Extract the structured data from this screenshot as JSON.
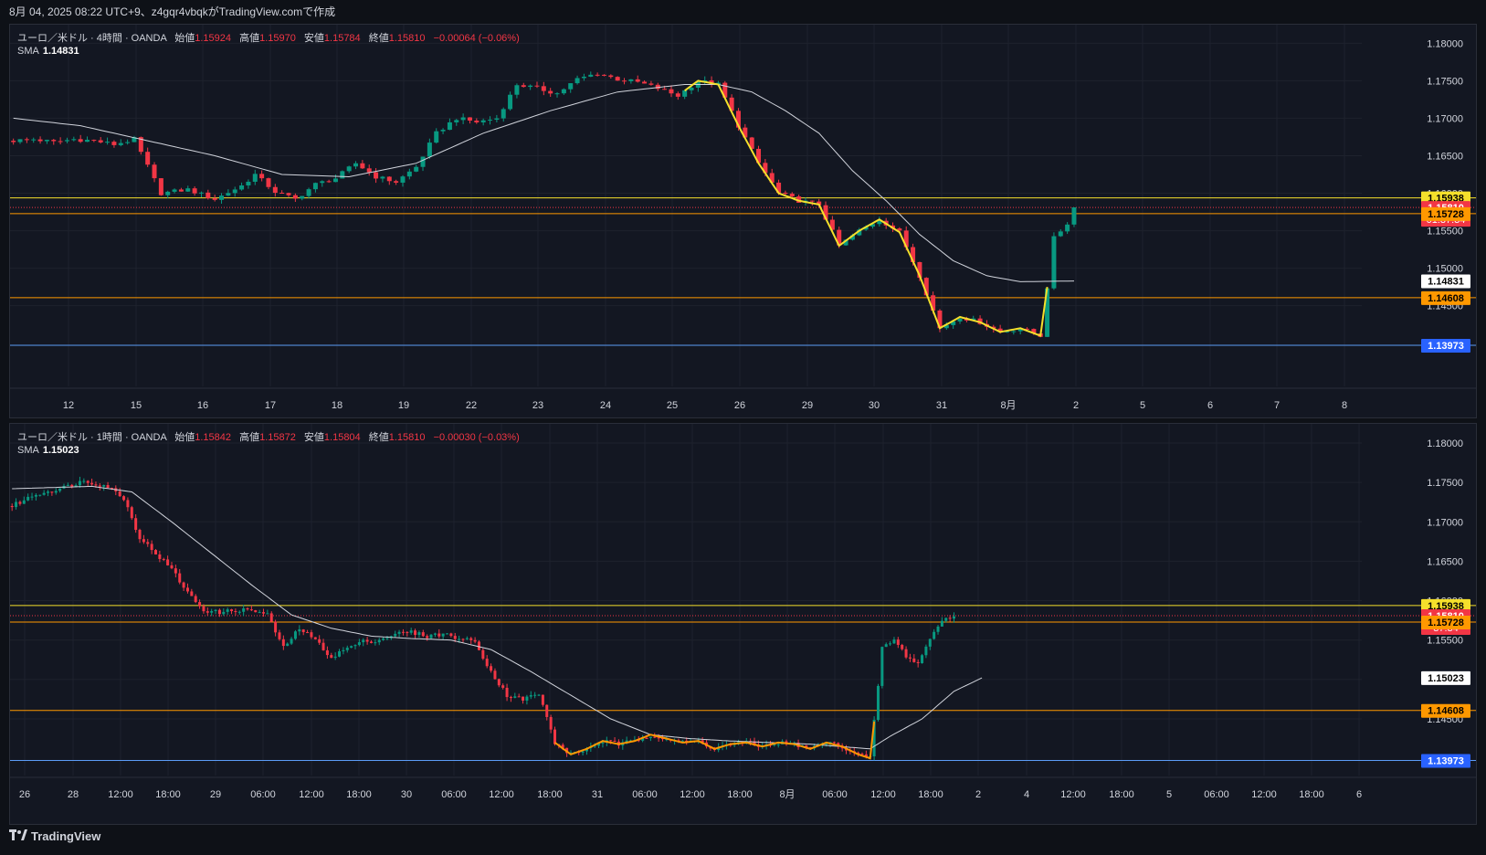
{
  "header": {
    "text": "8月 04, 2025 08:22 UTC+9、z4gqr4vbqkがTradingView.comで作成"
  },
  "footer": {
    "brand": "TradingView"
  },
  "colors": {
    "background": "#131722",
    "up": "#089981",
    "down": "#f23645",
    "grid": "#1e222d",
    "sma": "#d1d4dc",
    "level_yellow": "#f5e02b",
    "level_orange": "#ff9800",
    "level_blue": "#2962ff",
    "wave_yellow": "#f5e02b",
    "wave_orange": "#ff9800"
  },
  "panes": [
    {
      "symbol": "ユーロ／米ドル · 4時間 · OANDA",
      "open_label": "始値",
      "open": "1.15924",
      "high_label": "高値",
      "high": "1.15970",
      "low_label": "安値",
      "low": "1.15784",
      "close_label": "終値",
      "close": "1.15810",
      "change": "−0.00064 (−0.06%)",
      "sma_label": "SMA",
      "sma_value": "1.14831"
    },
    {
      "symbol": "ユーロ／米ドル · 1時間 · OANDA",
      "open_label": "始値",
      "open": "1.15842",
      "high_label": "高値",
      "high": "1.15872",
      "low_label": "安値",
      "low": "1.15804",
      "close_label": "終値",
      "close": "1.15810",
      "change": "−0.00030 (−0.03%)",
      "sma_label": "SMA",
      "sma_value": "1.15023"
    }
  ],
  "chart_data": [
    {
      "type": "candlestick",
      "title": "ユーロ／米ドル · 4時間 · OANDA",
      "ylim": [
        1.134,
        1.1815
      ],
      "y_ticks": [
        "1.18000",
        "1.17500",
        "1.17000",
        "1.16500",
        "1.16000",
        "1.15500",
        "1.15000",
        "1.14500"
      ],
      "x_labels": [
        "12",
        "15",
        "16",
        "17",
        "18",
        "19",
        "22",
        "23",
        "24",
        "25",
        "26",
        "29",
        "30",
        "31",
        "8月",
        "2",
        "5",
        "6",
        "7",
        "8"
      ],
      "price_labels": [
        {
          "text": "1.15938",
          "value": 1.15938,
          "bg": "#f5e02b",
          "fg": "#000000"
        },
        {
          "text": "1.15810",
          "sub": "01:37:34",
          "value": 1.1581,
          "bg": "#f23645",
          "fg": "#ffffff"
        },
        {
          "text": "1.15728",
          "value": 1.15728,
          "bg": "#ff9800",
          "fg": "#000000"
        },
        {
          "text": "1.14831",
          "value": 1.14831,
          "bg": "#ffffff",
          "fg": "#000000"
        },
        {
          "text": "1.14608",
          "value": 1.14608,
          "bg": "#ff9800",
          "fg": "#000000"
        },
        {
          "text": "1.13973",
          "value": 1.13973,
          "bg": "#2962ff",
          "fg": "#ffffff"
        }
      ],
      "levels": [
        {
          "value": 1.15938,
          "color": "#f5e02b"
        },
        {
          "value": 1.15728,
          "color": "#ff9800"
        },
        {
          "value": 1.14608,
          "color": "#ff9800"
        },
        {
          "value": 1.13973,
          "color": "#5b9cf6"
        }
      ],
      "last_price": 1.1581,
      "key_points": [
        [
          0,
          1.167
        ],
        [
          3,
          1.1672
        ],
        [
          6,
          1.1668
        ],
        [
          9,
          1.1672
        ],
        [
          12,
          1.167
        ],
        [
          15,
          1.1665
        ],
        [
          18,
          1.1672
        ],
        [
          22,
          1.16
        ],
        [
          26,
          1.1605
        ],
        [
          30,
          1.1592
        ],
        [
          34,
          1.161
        ],
        [
          36,
          1.1625
        ],
        [
          39,
          1.1602
        ],
        [
          42,
          1.1592
        ],
        [
          45,
          1.1612
        ],
        [
          48,
          1.162
        ],
        [
          51,
          1.164
        ],
        [
          54,
          1.1622
        ],
        [
          57,
          1.1615
        ],
        [
          60,
          1.1635
        ],
        [
          63,
          1.168
        ],
        [
          66,
          1.17
        ],
        [
          69,
          1.1695
        ],
        [
          72,
          1.17
        ],
        [
          75,
          1.1745
        ],
        [
          78,
          1.174
        ],
        [
          81,
          1.1733
        ],
        [
          84,
          1.1752
        ],
        [
          87,
          1.176
        ],
        [
          90,
          1.1752
        ],
        [
          93,
          1.1748
        ],
        [
          96,
          1.174
        ],
        [
          99,
          1.173
        ],
        [
          102,
          1.175
        ],
        [
          105,
          1.1745
        ],
        [
          108,
          1.169
        ],
        [
          111,
          1.164
        ],
        [
          114,
          1.16
        ],
        [
          117,
          1.159
        ],
        [
          120,
          1.1585
        ],
        [
          123,
          1.153
        ],
        [
          126,
          1.155
        ],
        [
          129,
          1.1565
        ],
        [
          132,
          1.1548
        ],
        [
          135,
          1.149
        ],
        [
          138,
          1.142
        ],
        [
          141,
          1.1435
        ],
        [
          144,
          1.1428
        ],
        [
          147,
          1.1415
        ],
        [
          150,
          1.142
        ],
        [
          153,
          1.141
        ],
        [
          155,
          1.154
        ],
        [
          157,
          1.156
        ],
        [
          158,
          1.1581
        ]
      ],
      "sma_points": [
        [
          0,
          1.17
        ],
        [
          10,
          1.169
        ],
        [
          20,
          1.167
        ],
        [
          30,
          1.165
        ],
        [
          40,
          1.1625
        ],
        [
          50,
          1.1622
        ],
        [
          60,
          1.164
        ],
        [
          70,
          1.168
        ],
        [
          80,
          1.171
        ],
        [
          90,
          1.1735
        ],
        [
          100,
          1.1745
        ],
        [
          105,
          1.1745
        ],
        [
          110,
          1.1735
        ],
        [
          115,
          1.171
        ],
        [
          120,
          1.168
        ],
        [
          125,
          1.163
        ],
        [
          130,
          1.159
        ],
        [
          135,
          1.1545
        ],
        [
          140,
          1.151
        ],
        [
          145,
          1.149
        ],
        [
          150,
          1.1482
        ],
        [
          158,
          1.1483
        ]
      ]
    },
    {
      "type": "candlestick",
      "title": "ユーロ／米ドル · 1時間 · OANDA",
      "ylim": [
        1.1355,
        1.1815
      ],
      "y_ticks": [
        "1.18000",
        "1.17500",
        "1.17000",
        "1.16500",
        "1.16000",
        "1.15500",
        "1.15000",
        "1.14500"
      ],
      "x_labels": [
        "26",
        "28",
        "12:00",
        "18:00",
        "29",
        "06:00",
        "12:00",
        "18:00",
        "30",
        "06:00",
        "12:00",
        "18:00",
        "31",
        "06:00",
        "12:00",
        "18:00",
        "8月",
        "06:00",
        "12:00",
        "18:00",
        "2",
        "4",
        "12:00",
        "18:00",
        "5",
        "06:00",
        "12:00",
        "18:00",
        "6"
      ],
      "price_labels": [
        {
          "text": "1.15938",
          "value": 1.15938,
          "bg": "#f5e02b",
          "fg": "#000000"
        },
        {
          "text": "1.15810",
          "sub": "37:34",
          "value": 1.1581,
          "bg": "#f23645",
          "fg": "#ffffff"
        },
        {
          "text": "1.15728",
          "value": 1.15728,
          "bg": "#ff9800",
          "fg": "#000000"
        },
        {
          "text": "1.15023",
          "value": 1.15023,
          "bg": "#ffffff",
          "fg": "#000000"
        },
        {
          "text": "1.14608",
          "value": 1.14608,
          "bg": "#ff9800",
          "fg": "#000000"
        },
        {
          "text": "1.13973",
          "value": 1.13973,
          "bg": "#2962ff",
          "fg": "#ffffff"
        }
      ],
      "levels": [
        {
          "value": 1.15938,
          "color": "#f5e02b"
        },
        {
          "value": 1.15728,
          "color": "#ff9800"
        },
        {
          "value": 1.14608,
          "color": "#ff9800"
        },
        {
          "value": 1.13973,
          "color": "#5b9cf6"
        }
      ],
      "last_price": 1.1581,
      "key_points": [
        [
          0,
          1.172
        ],
        [
          6,
          1.1735
        ],
        [
          12,
          1.1742
        ],
        [
          18,
          1.1752
        ],
        [
          24,
          1.1745
        ],
        [
          28,
          1.173
        ],
        [
          32,
          1.168
        ],
        [
          36,
          1.166
        ],
        [
          40,
          1.164
        ],
        [
          44,
          1.161
        ],
        [
          48,
          1.1588
        ],
        [
          52,
          1.1585
        ],
        [
          56,
          1.1588
        ],
        [
          60,
          1.1588
        ],
        [
          64,
          1.1582
        ],
        [
          68,
          1.154
        ],
        [
          72,
          1.1565
        ],
        [
          76,
          1.155
        ],
        [
          80,
          1.1528
        ],
        [
          84,
          1.154
        ],
        [
          88,
          1.1548
        ],
        [
          92,
          1.155
        ],
        [
          96,
          1.1558
        ],
        [
          100,
          1.156
        ],
        [
          104,
          1.1555
        ],
        [
          108,
          1.1558
        ],
        [
          112,
          1.1552
        ],
        [
          116,
          1.1548
        ],
        [
          120,
          1.151
        ],
        [
          124,
          1.148
        ],
        [
          128,
          1.1475
        ],
        [
          132,
          1.1482
        ],
        [
          136,
          1.142
        ],
        [
          140,
          1.1405
        ],
        [
          144,
          1.1412
        ],
        [
          148,
          1.1422
        ],
        [
          152,
          1.1418
        ],
        [
          156,
          1.1422
        ],
        [
          160,
          1.143
        ],
        [
          164,
          1.1425
        ],
        [
          168,
          1.142
        ],
        [
          172,
          1.1422
        ],
        [
          176,
          1.1412
        ],
        [
          180,
          1.1418
        ],
        [
          184,
          1.142
        ],
        [
          188,
          1.1415
        ],
        [
          192,
          1.142
        ],
        [
          196,
          1.1418
        ],
        [
          200,
          1.1412
        ],
        [
          204,
          1.142
        ],
        [
          208,
          1.1415
        ],
        [
          212,
          1.1405
        ],
        [
          215,
          1.14
        ],
        [
          218,
          1.154
        ],
        [
          221,
          1.155
        ],
        [
          224,
          1.153
        ],
        [
          227,
          1.152
        ],
        [
          230,
          1.1552
        ],
        [
          233,
          1.1575
        ],
        [
          236,
          1.1581
        ]
      ],
      "sma_points": [
        [
          0,
          1.1742
        ],
        [
          20,
          1.1745
        ],
        [
          30,
          1.1738
        ],
        [
          40,
          1.17
        ],
        [
          50,
          1.166
        ],
        [
          60,
          1.162
        ],
        [
          70,
          1.1582
        ],
        [
          80,
          1.1565
        ],
        [
          90,
          1.1555
        ],
        [
          100,
          1.1552
        ],
        [
          110,
          1.155
        ],
        [
          120,
          1.1538
        ],
        [
          130,
          1.151
        ],
        [
          140,
          1.148
        ],
        [
          150,
          1.145
        ],
        [
          160,
          1.143
        ],
        [
          170,
          1.1425
        ],
        [
          180,
          1.1422
        ],
        [
          190,
          1.142
        ],
        [
          200,
          1.1418
        ],
        [
          210,
          1.1414
        ],
        [
          215,
          1.1412
        ],
        [
          220,
          1.1428
        ],
        [
          228,
          1.145
        ],
        [
          236,
          1.1485
        ],
        [
          243,
          1.1502
        ]
      ]
    }
  ]
}
